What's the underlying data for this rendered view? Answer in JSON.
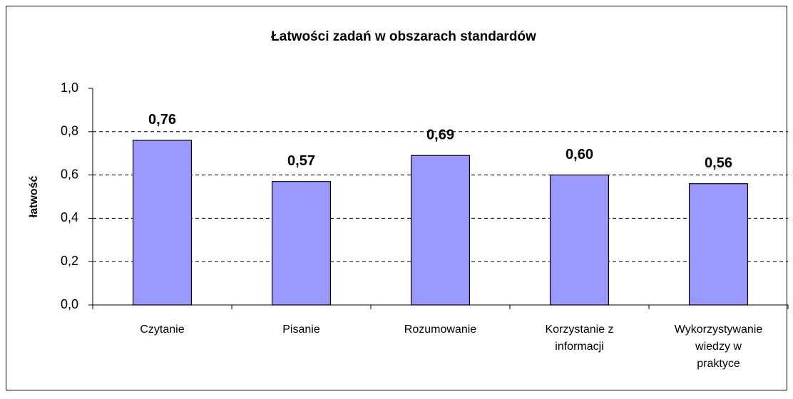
{
  "chart_data": {
    "type": "bar",
    "title": "Łatwości zadań w obszarach standardów",
    "y_label": "łatwość",
    "categories": [
      "Czytanie",
      "Pisanie",
      "Rozumowanie",
      "Korzystanie z informacji",
      "Wykorzystywanie wiedzy w praktyce"
    ],
    "values": [
      0.76,
      0.57,
      0.69,
      0.6,
      0.56
    ],
    "value_labels": [
      "0,76",
      "0,57",
      "0,69",
      "0,60",
      "0,56"
    ],
    "color": "#9999ff",
    "ylim": [
      0,
      1
    ],
    "yticks": [
      {
        "value": 0,
        "label": "0,0"
      },
      {
        "value": 0.2,
        "label": "0,2"
      },
      {
        "value": 0.4,
        "label": "0,4"
      },
      {
        "value": 0.6,
        "label": "0,6"
      },
      {
        "value": 0.8,
        "label": "0,8"
      },
      {
        "value": 1,
        "label": "1,0"
      }
    ],
    "grid": true
  }
}
